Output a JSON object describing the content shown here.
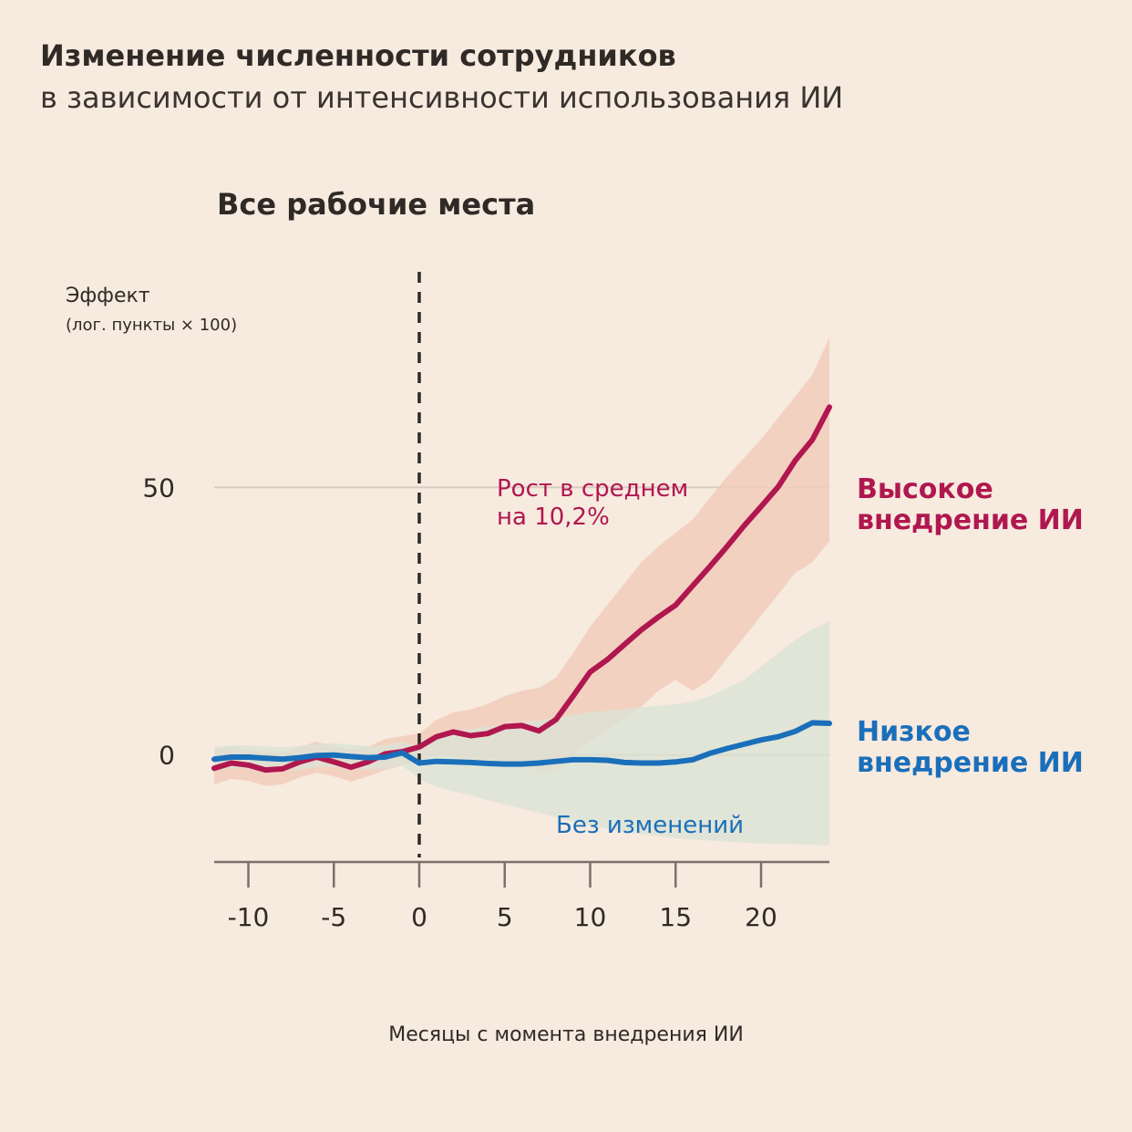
{
  "header": {
    "title": "Изменение численности сотрудников",
    "subtitle": "в зависимости от интенсивности использования ИИ"
  },
  "colors": {
    "background": "#f7eadf",
    "high": "#b0174f",
    "high_band": "#f2ccbc",
    "low": "#1a6fba",
    "low_band": "#d9e3d6"
  },
  "chart_data": {
    "type": "line",
    "title": "Все рабочие места",
    "ylabel": "Эффект",
    "ylabel_sub": "(лог. пункты × 100)",
    "xlabel": "Месяцы с момента внедрения ИИ",
    "xlim": [
      -12,
      24
    ],
    "ylim": [
      -20,
      78
    ],
    "xticks": [
      -10,
      -5,
      0,
      5,
      10,
      15,
      20
    ],
    "yticks": [
      0,
      50
    ],
    "grid": "horizontal",
    "vline": 0,
    "x": [
      -12,
      -11,
      -10,
      -9,
      -8,
      -7,
      -6,
      -5,
      -4,
      -3,
      -2,
      -1,
      0,
      1,
      2,
      3,
      4,
      5,
      6,
      7,
      8,
      9,
      10,
      11,
      12,
      13,
      14,
      15,
      16,
      17,
      18,
      19,
      20,
      21,
      22,
      23,
      24
    ],
    "series": [
      {
        "name": "Высокое внедрение ИИ",
        "values": [
          -2.5,
          -1.5,
          -1.9,
          -2.8,
          -2.6,
          -1.3,
          -0.4,
          -1.3,
          -2.3,
          -1.3,
          0.2,
          0.6,
          1.5,
          3.4,
          4.3,
          3.6,
          4.0,
          5.3,
          5.5,
          4.5,
          6.6,
          11.0,
          15.5,
          17.8,
          20.6,
          23.4,
          25.8,
          28.0,
          31.6,
          35.2,
          38.9,
          42.8,
          46.4,
          50.1,
          55.0,
          58.9,
          65.0
        ],
        "lower": [
          -5.5,
          -4.5,
          -4.8,
          -5.8,
          -5.5,
          -4.2,
          -3.3,
          -4.0,
          -5.0,
          -4.0,
          -2.8,
          -2.0,
          -1.0,
          0.0,
          0.0,
          -1.0,
          -1.0,
          -1.5,
          -2.0,
          -3.0,
          -3.0,
          0.0,
          2.5,
          4.5,
          7.0,
          9.0,
          12.0,
          14.0,
          12.0,
          14.0,
          18.0,
          22.0,
          26.0,
          30.0,
          34.0,
          36.0,
          40.0
        ],
        "upper": [
          1.0,
          1.5,
          1.0,
          0.5,
          0.5,
          1.5,
          2.5,
          1.5,
          1.0,
          1.5,
          3.0,
          3.5,
          4.0,
          6.5,
          8.0,
          8.5,
          9.5,
          11.0,
          12.0,
          12.5,
          14.5,
          19.0,
          24.0,
          28.0,
          32.0,
          36.0,
          39.0,
          41.5,
          44.0,
          48.0,
          52.0,
          55.5,
          59.0,
          63.0,
          67.0,
          71.0,
          78.0
        ]
      },
      {
        "name": "Низкое внедрение ИИ",
        "values": [
          -0.8,
          -0.4,
          -0.4,
          -0.6,
          -0.8,
          -0.5,
          -0.1,
          0.0,
          -0.3,
          -0.5,
          -0.4,
          0.4,
          -1.5,
          -1.2,
          -1.3,
          -1.4,
          -1.6,
          -1.7,
          -1.7,
          -1.5,
          -1.2,
          -0.9,
          -0.9,
          -1.0,
          -1.4,
          -1.5,
          -1.5,
          -1.3,
          -0.9,
          0.3,
          1.2,
          2.0,
          2.8,
          3.4,
          4.4,
          6.0,
          5.9
        ],
        "lower": [
          -3.0,
          -2.5,
          -2.5,
          -2.8,
          -3.0,
          -2.7,
          -2.3,
          -2.2,
          -2.5,
          -2.7,
          -2.6,
          -2.0,
          -4.5,
          -6.0,
          -6.8,
          -7.6,
          -8.4,
          -9.2,
          -10.0,
          -10.8,
          -11.6,
          -12.4,
          -13.2,
          -13.8,
          -14.4,
          -14.8,
          -15.2,
          -15.5,
          -15.8,
          -16.0,
          -16.2,
          -16.4,
          -16.5,
          -16.6,
          -16.7,
          -16.8,
          -16.9
        ],
        "upper": [
          1.5,
          1.8,
          1.8,
          1.6,
          1.4,
          1.7,
          2.1,
          2.2,
          1.9,
          1.7,
          1.8,
          2.5,
          1.5,
          3.5,
          4.3,
          4.9,
          5.3,
          5.7,
          6.1,
          6.5,
          7.0,
          7.5,
          8.0,
          8.3,
          8.6,
          8.9,
          9.2,
          9.5,
          10.0,
          11.0,
          12.5,
          14.0,
          16.5,
          19.0,
          21.5,
          23.5,
          25.0
        ]
      }
    ],
    "annotations": {
      "high": "Рост в среднем\nна 10,2%",
      "low": "Без изменений"
    },
    "legend": {
      "high": "Высокое\nвнедрение ИИ",
      "low": "Низкое\nвнедрение ИИ"
    }
  }
}
